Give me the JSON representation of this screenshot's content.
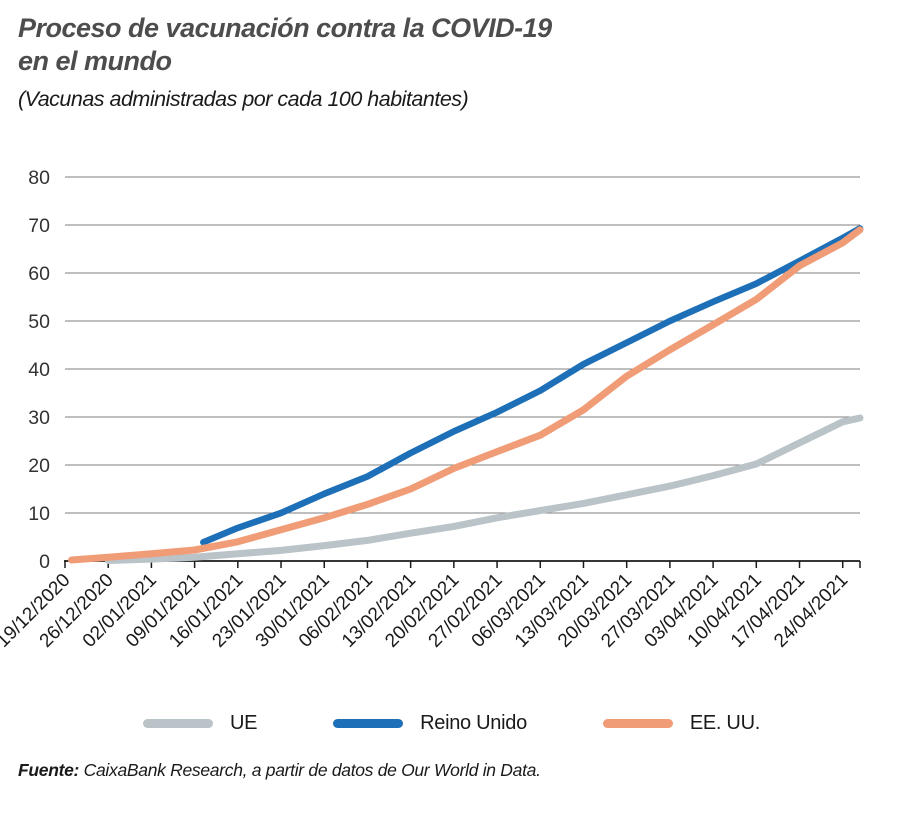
{
  "header": {
    "title_line1": "Proceso de vacunación contra la COVID-19",
    "title_line2": "en el mundo",
    "subtitle": "(Vacunas administradas por cada 100 habitantes)"
  },
  "legend": [
    {
      "label": "UE",
      "color": "#b9c3c8"
    },
    {
      "label": "Reino Unido",
      "color": "#1d70b8"
    },
    {
      "label": "EE. UU.",
      "color": "#f09c77"
    }
  ],
  "footer": {
    "source_label": "Fuente:",
    "source_text": " CaixaBank Research, a partir de datos de Our World in Data."
  },
  "colors": {
    "gridline": "#7f7f7f",
    "axis": "#1a1a1a",
    "tick_label": "#333333"
  },
  "chart_data": {
    "type": "line",
    "title": "Proceso de vacunación contra la COVID-19 en el mundo",
    "subtitle": "(Vacunas administradas por cada 100 habitantes)",
    "ylabel": "Vacunas administradas por cada 100 habitantes",
    "xlabel": "",
    "ylim": [
      0,
      80
    ],
    "yticks": [
      0,
      10,
      20,
      30,
      40,
      50,
      60,
      70,
      80
    ],
    "grid": true,
    "legend_position": "bottom",
    "x_tick_labels": [
      "19/12/2020",
      "26/12/2020",
      "02/01/2021",
      "09/01/2021",
      "16/01/2021",
      "23/01/2021",
      "30/01/2021",
      "06/02/2021",
      "13/02/2021",
      "20/02/2021",
      "27/02/2021",
      "06/03/2021",
      "13/03/2021",
      "20/03/2021",
      "27/03/2021",
      "03/04/2021",
      "10/04/2021",
      "17/04/2021",
      "24/04/2021"
    ],
    "x_axis_units_max": 18.4,
    "series": [
      {
        "name": "UE",
        "color": "#b9c3c8",
        "stroke_width": 7,
        "points": [
          [
            1,
            0.1
          ],
          [
            2,
            0.4
          ],
          [
            3,
            0.8
          ],
          [
            4,
            1.5
          ],
          [
            5,
            2.2
          ],
          [
            6,
            3.2
          ],
          [
            7,
            4.3
          ],
          [
            8,
            5.8
          ],
          [
            9,
            7.2
          ],
          [
            10,
            9.0
          ],
          [
            11,
            10.5
          ],
          [
            12,
            12.0
          ],
          [
            13,
            13.8
          ],
          [
            14,
            15.6
          ],
          [
            15,
            17.8
          ],
          [
            16,
            20.2
          ],
          [
            17,
            24.6
          ],
          [
            18,
            29.0
          ],
          [
            18.4,
            29.8
          ]
        ]
      },
      {
        "name": "Reino Unido",
        "color": "#1d70b8",
        "stroke_width": 6.5,
        "points": [
          [
            3.2,
            3.9
          ],
          [
            4,
            6.9
          ],
          [
            5,
            10.0
          ],
          [
            6,
            14.0
          ],
          [
            7,
            17.6
          ],
          [
            8,
            22.5
          ],
          [
            9,
            27.0
          ],
          [
            10,
            31.0
          ],
          [
            11,
            35.5
          ],
          [
            12,
            41.0
          ],
          [
            13,
            45.5
          ],
          [
            14,
            50.0
          ],
          [
            15,
            54.0
          ],
          [
            16,
            57.8
          ],
          [
            17,
            62.5
          ],
          [
            18,
            67.3
          ],
          [
            18.4,
            69.3
          ]
        ]
      },
      {
        "name": "EE. UU.",
        "color": "#f09c77",
        "stroke_width": 7,
        "points": [
          [
            0.15,
            0.2
          ],
          [
            1,
            0.8
          ],
          [
            2,
            1.5
          ],
          [
            3,
            2.3
          ],
          [
            4,
            4.0
          ],
          [
            5,
            6.5
          ],
          [
            6,
            9.0
          ],
          [
            7,
            11.8
          ],
          [
            8,
            15.0
          ],
          [
            9,
            19.3
          ],
          [
            10,
            22.8
          ],
          [
            11,
            26.2
          ],
          [
            12,
            31.5
          ],
          [
            13,
            38.5
          ],
          [
            14,
            44.0
          ],
          [
            15,
            49.2
          ],
          [
            16,
            54.5
          ],
          [
            17,
            61.5
          ],
          [
            18,
            66.3
          ],
          [
            18.4,
            69.0
          ]
        ]
      }
    ]
  }
}
